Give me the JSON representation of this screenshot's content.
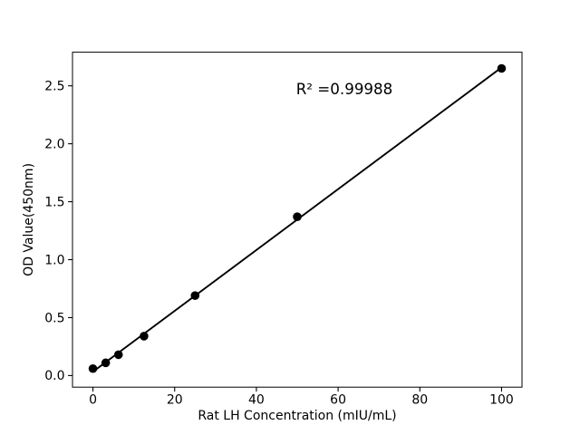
{
  "chart_data": {
    "type": "scatter",
    "title": "",
    "xlabel": "Rat LH Concentration (mIU/mL)",
    "ylabel": "OD Value(450nm)",
    "x": [
      0,
      3.125,
      6.25,
      12.5,
      25,
      50,
      100
    ],
    "y": [
      0.06,
      0.11,
      0.18,
      0.34,
      0.69,
      1.37,
      2.65
    ],
    "fit": {
      "type": "linear-least-squares",
      "x_range": [
        0,
        100
      ],
      "r_squared": 0.99988
    },
    "annotation": "R² =0.99988",
    "xticks": [
      0,
      20,
      40,
      60,
      80,
      100
    ],
    "yticks": [
      0.0,
      0.5,
      1.0,
      1.5,
      2.0,
      2.5
    ],
    "xlim": [
      -5,
      105
    ],
    "ylim": [
      -0.1,
      2.79
    ],
    "grid": false,
    "legend": null,
    "colors": {
      "marker": "#000000",
      "line": "#000000",
      "axis": "#000000",
      "background": "#ffffff"
    }
  }
}
